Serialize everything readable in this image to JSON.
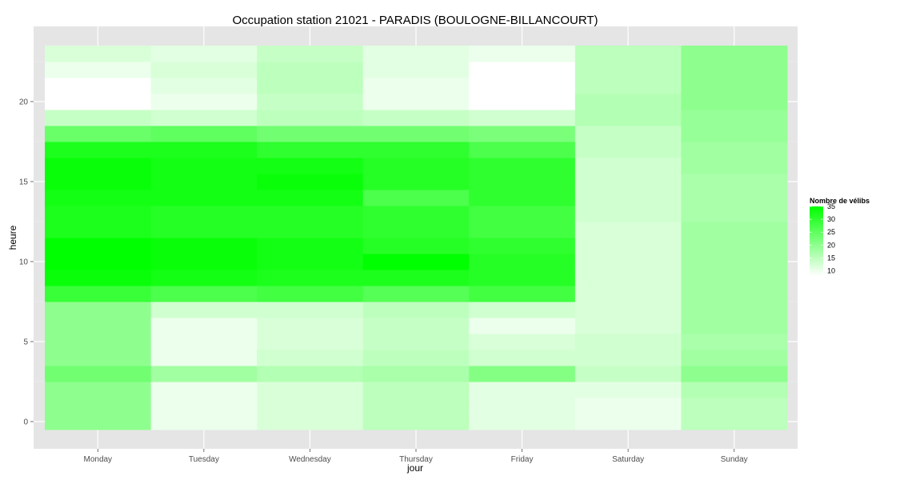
{
  "chart_data": {
    "type": "heatmap",
    "title": "Occupation station 21021 - PARADIS (BOULOGNE-BILLANCOURT)",
    "xlabel": "jour",
    "ylabel": "heure",
    "x_categories": [
      "Monday",
      "Tuesday",
      "Wednesday",
      "Thursday",
      "Friday",
      "Saturday",
      "Sunday"
    ],
    "y_hours": [
      0,
      1,
      2,
      3,
      4,
      5,
      6,
      7,
      8,
      9,
      10,
      11,
      12,
      13,
      14,
      15,
      16,
      17,
      18,
      19,
      20,
      21,
      22,
      23
    ],
    "y_ticks": [
      0,
      5,
      10,
      15,
      20
    ],
    "ylim": [
      -0.5,
      23.5
    ],
    "legend": {
      "title": "Nombre de vélibs",
      "ticks": [
        10,
        15,
        20,
        25,
        30,
        35
      ],
      "range": [
        8,
        35
      ],
      "color_low": "#ffffff",
      "color_high": "#00ff00",
      "placement": "right"
    },
    "grid": true,
    "background": "#e5e5e5",
    "values": {
      "Monday": [
        20,
        20,
        20,
        23,
        20,
        20,
        20,
        20,
        29,
        34,
        35,
        35,
        32,
        32,
        33,
        34,
        34,
        32,
        24,
        14,
        8,
        8,
        10,
        12
      ],
      "Tuesday": [
        10,
        10,
        10,
        18,
        10,
        10,
        10,
        13,
        27,
        33,
        34,
        34,
        31,
        31,
        33,
        33,
        33,
        32,
        25,
        13,
        10,
        11,
        12,
        11
      ],
      "Wednesday": [
        12,
        12,
        12,
        16,
        13,
        12,
        12,
        13,
        28,
        32,
        33,
        33,
        31,
        31,
        33,
        34,
        33,
        30,
        23,
        15,
        14,
        15,
        15,
        14
      ],
      "Thursday": [
        15,
        15,
        15,
        17,
        15,
        14,
        14,
        15,
        26,
        32,
        35,
        31,
        30,
        30,
        27,
        31,
        31,
        30,
        23,
        14,
        10,
        10,
        11,
        11
      ],
      "Friday": [
        11,
        11,
        11,
        21,
        13,
        12,
        10,
        13,
        28,
        31,
        31,
        30,
        28,
        28,
        30,
        30,
        30,
        27,
        22,
        13,
        8,
        8,
        8,
        10
      ],
      "Saturday": [
        10,
        10,
        11,
        14,
        13,
        13,
        12,
        12,
        12,
        12,
        12,
        12,
        12,
        13,
        13,
        13,
        13,
        14,
        14,
        16,
        16,
        15,
        15,
        15
      ],
      "Sunday": [
        15,
        15,
        16,
        20,
        18,
        17,
        18,
        18,
        18,
        18,
        18,
        18,
        18,
        17,
        17,
        17,
        18,
        18,
        19,
        19,
        20,
        20,
        20,
        20
      ]
    }
  }
}
